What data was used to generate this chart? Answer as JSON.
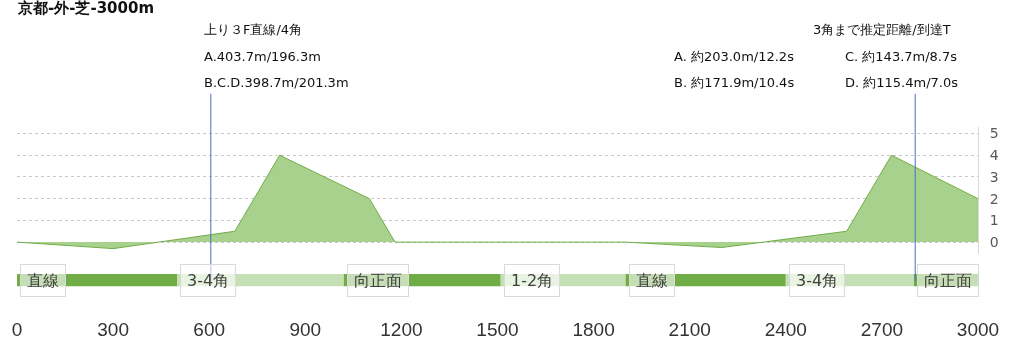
{
  "chart_data": [
    {
      "type": "area",
      "title": "京都-外-芝-3000m",
      "x": [
        0,
        300,
        680,
        820,
        1100,
        1180,
        1900,
        2200,
        2590,
        2730,
        3000
      ],
      "series": [
        {
          "color": "#a9d18e",
          "values": [
            0,
            -0.3,
            0.5,
            4,
            2,
            0,
            0,
            -0.25,
            0.5,
            4,
            2
          ]
        }
      ],
      "xlim": [
        0,
        3000
      ],
      "xticks": [
        0,
        300,
        600,
        900,
        1200,
        1500,
        1800,
        2100,
        2400,
        2700,
        3000
      ],
      "ylim": [
        -0.55,
        5.3
      ],
      "yticks": [
        0,
        1,
        2,
        3,
        4,
        5
      ],
      "grid": "y",
      "tick_labels": "y",
      "ref_lines": [
        {
          "axis": "x",
          "value": 605,
          "color": "#4472c4"
        },
        {
          "axis": "x",
          "value": 2804,
          "color": "#4472c4"
        }
      ],
      "annotations": [
        "上り３F直線/4角",
        "A.403.7m/196.3m",
        "B.C.D.398.7m/201.3m",
        "3角まで推定距離/到達T",
        "A. 約203.0m/12.2s",
        "B. 約171.9m/10.4s",
        "C. 約143.7m/8.7s",
        "D. 約115.4m/7.0s"
      ]
    },
    {
      "type": "bar",
      "orientation": "horizontal",
      "stacked": true,
      "categories": [
        null
      ],
      "series": [
        {
          "name": "直線",
          "color": "#70ad47",
          "values": [
            500
          ]
        },
        {
          "name": "3-4角",
          "color": "#c5e0b4",
          "values": [
            520
          ]
        },
        {
          "name": "向正面",
          "color": "#70ad47",
          "values": [
            490
          ]
        },
        {
          "name": "1-2角",
          "color": "#c5e0b4",
          "values": [
            390
          ]
        },
        {
          "name": "直線",
          "color": "#70ad47",
          "values": [
            500
          ]
        },
        {
          "name": "3-4角",
          "color": "#c5e0b4",
          "values": [
            400
          ]
        },
        {
          "name": "向正面",
          "color": "#70ad47",
          "values": [
            200
          ]
        }
      ],
      "xlim": [
        0,
        3000
      ],
      "xticks": [
        0,
        300,
        600,
        900,
        1200,
        1500,
        1800,
        2100,
        2400,
        2700,
        3000
      ],
      "tick_labels": "x"
    }
  ]
}
